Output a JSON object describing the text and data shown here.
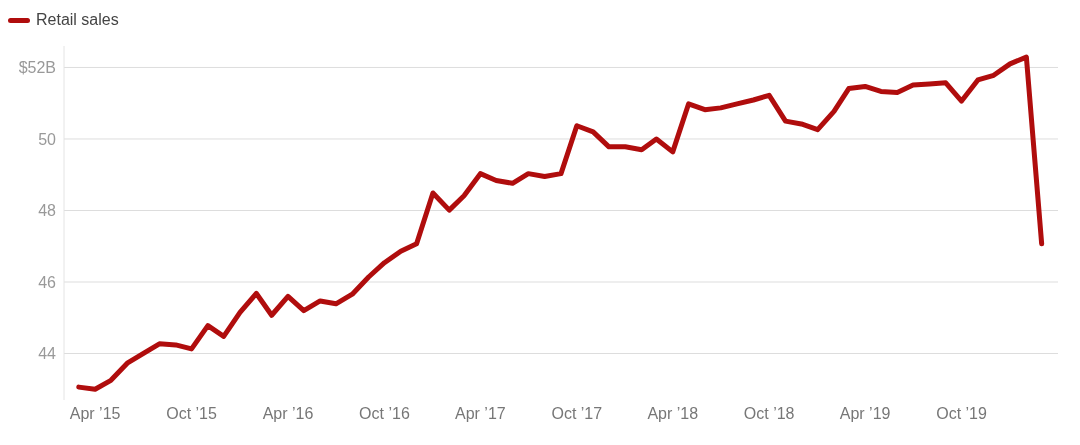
{
  "chart_data": {
    "type": "line",
    "x": [
      "2015-03",
      "2015-04",
      "2015-05",
      "2015-06",
      "2015-07",
      "2015-08",
      "2015-09",
      "2015-10",
      "2015-11",
      "2015-12",
      "2016-01",
      "2016-02",
      "2016-03",
      "2016-04",
      "2016-05",
      "2016-06",
      "2016-07",
      "2016-08",
      "2016-09",
      "2016-10",
      "2016-11",
      "2016-12",
      "2017-01",
      "2017-02",
      "2017-03",
      "2017-04",
      "2017-05",
      "2017-06",
      "2017-07",
      "2017-08",
      "2017-09",
      "2017-10",
      "2017-11",
      "2017-12",
      "2018-01",
      "2018-02",
      "2018-03",
      "2018-04",
      "2018-05",
      "2018-06",
      "2018-07",
      "2018-08",
      "2018-09",
      "2018-10",
      "2018-11",
      "2018-12",
      "2019-01",
      "2019-02",
      "2019-03",
      "2019-04",
      "2019-05",
      "2019-06",
      "2019-07",
      "2019-08",
      "2019-09",
      "2019-10",
      "2019-11",
      "2019-12",
      "2020-01",
      "2020-02",
      "2020-03"
    ],
    "series": [
      {
        "name": "Retail sales",
        "color": "#b00d0d",
        "values": [
          43.06,
          43.0,
          43.25,
          43.73,
          44.0,
          44.27,
          44.24,
          44.13,
          44.78,
          44.48,
          45.15,
          45.68,
          45.07,
          45.6,
          45.2,
          45.47,
          45.39,
          45.66,
          46.14,
          46.54,
          46.86,
          47.07,
          48.49,
          48.01,
          48.41,
          49.03,
          48.84,
          48.76,
          49.03,
          48.95,
          49.03,
          50.37,
          50.2,
          49.78,
          49.78,
          49.7,
          50.0,
          49.64,
          50.98,
          50.82,
          50.87,
          50.98,
          51.09,
          51.22,
          50.5,
          50.42,
          50.26,
          50.77,
          51.41,
          51.47,
          51.33,
          51.3,
          51.51,
          51.54,
          51.57,
          51.06,
          51.65,
          51.78,
          52.1,
          52.29,
          47.07
        ]
      }
    ],
    "xlim": [
      "2015-02",
      "2020-04"
    ],
    "xticks": [
      {
        "value": "2015-04",
        "label": "Apr ’15"
      },
      {
        "value": "2015-10",
        "label": "Oct ’15"
      },
      {
        "value": "2016-04",
        "label": "Apr ’16"
      },
      {
        "value": "2016-10",
        "label": "Oct ’16"
      },
      {
        "value": "2017-04",
        "label": "Apr ’17"
      },
      {
        "value": "2017-10",
        "label": "Oct ’17"
      },
      {
        "value": "2018-04",
        "label": "Apr ’18"
      },
      {
        "value": "2018-10",
        "label": "Oct ’18"
      },
      {
        "value": "2019-04",
        "label": "Apr ’19"
      },
      {
        "value": "2019-10",
        "label": "Oct ’19"
      }
    ],
    "ylim": [
      42.7,
      52.6
    ],
    "yticks": [
      44,
      46,
      48,
      50,
      {
        "value": 52,
        "label": "$52B"
      }
    ],
    "grid": "y",
    "legend": "top left",
    "line_style": "solid",
    "marker": "none"
  }
}
